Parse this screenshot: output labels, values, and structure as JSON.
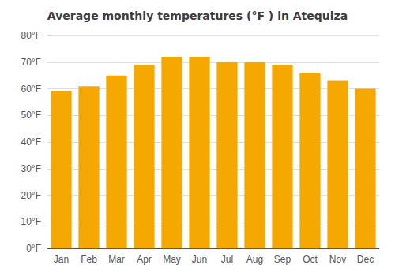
{
  "chart_data": {
    "type": "bar",
    "title": "Average monthly temperatures (°F ) in Atequiza",
    "categories": [
      "Jan",
      "Feb",
      "Mar",
      "Apr",
      "May",
      "Jun",
      "Jul",
      "Aug",
      "Sep",
      "Oct",
      "Nov",
      "Dec"
    ],
    "values": [
      59,
      61,
      65,
      69,
      72,
      72,
      70,
      70,
      69,
      66,
      63,
      60
    ],
    "color": "#F5A800",
    "ylim": [
      0,
      80
    ],
    "yticks": [
      {
        "value": 0,
        "label": "0°F"
      },
      {
        "value": 10,
        "label": "10°F"
      },
      {
        "value": 20,
        "label": "20°F"
      },
      {
        "value": 30,
        "label": "30°F"
      },
      {
        "value": 40,
        "label": "40°F"
      },
      {
        "value": 50,
        "label": "50°F"
      },
      {
        "value": 60,
        "label": "60°F"
      },
      {
        "value": 70,
        "label": "70°F"
      },
      {
        "value": 80,
        "label": "80°F"
      }
    ],
    "grid": true
  }
}
